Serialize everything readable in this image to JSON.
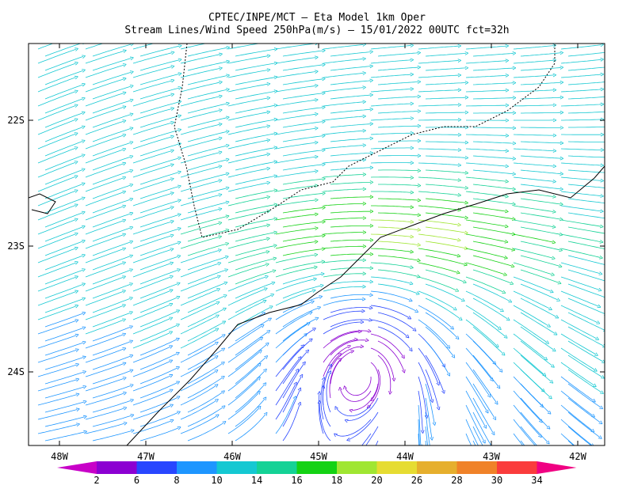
{
  "header": {
    "title": "CPTEC/INPE/MCT –  Eta Model 1km Oper",
    "subtitle": "Stream Lines/Wind Speed 250hPa(m/s) – 15/01/2022 00UTC fct=32h"
  },
  "map": {
    "lat_labels": [
      "22S",
      "23S",
      "24S"
    ],
    "lon_labels": [
      "48W",
      "47W",
      "46W",
      "45W",
      "44W",
      "43W",
      "42W"
    ]
  },
  "colorbar": {
    "labels": [
      2,
      6,
      8,
      10,
      14,
      16,
      18,
      20,
      26,
      28,
      30,
      34
    ],
    "colors": [
      "#c800c8",
      "#8c00d2",
      "#2846ff",
      "#1e96ff",
      "#14c8d2",
      "#14d296",
      "#14d214",
      "#a0e632",
      "#e6dc32",
      "#e6af2d",
      "#f08228",
      "#fa3c3c",
      "#f00082"
    ]
  }
}
